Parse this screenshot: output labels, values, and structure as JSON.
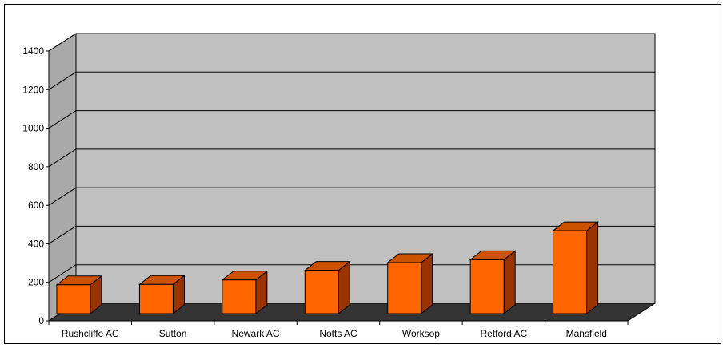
{
  "chart_data": {
    "type": "bar",
    "title": "",
    "xlabel": "",
    "ylabel": "",
    "categories": [
      "Rushcliffe AC",
      "Sutton",
      "Newark AC",
      "Notts AC",
      "Worksop",
      "Retford AC",
      "Mansfield"
    ],
    "values": [
      150,
      152,
      175,
      225,
      265,
      280,
      430
    ],
    "ylim": [
      0,
      1400
    ],
    "yticks": [
      "0",
      "200",
      "400",
      "600",
      "800",
      "1000",
      "1200",
      "1400"
    ],
    "grid": true,
    "legend": "none",
    "style": "3d-column"
  },
  "colors": {
    "bar_front": "#FF6600",
    "bar_top": "#CC5200",
    "bar_side": "#993300",
    "back_wall": "#C0C0C0",
    "side_wall": "#A9A9A9",
    "floor": "#333333",
    "gridline": "#000000"
  }
}
